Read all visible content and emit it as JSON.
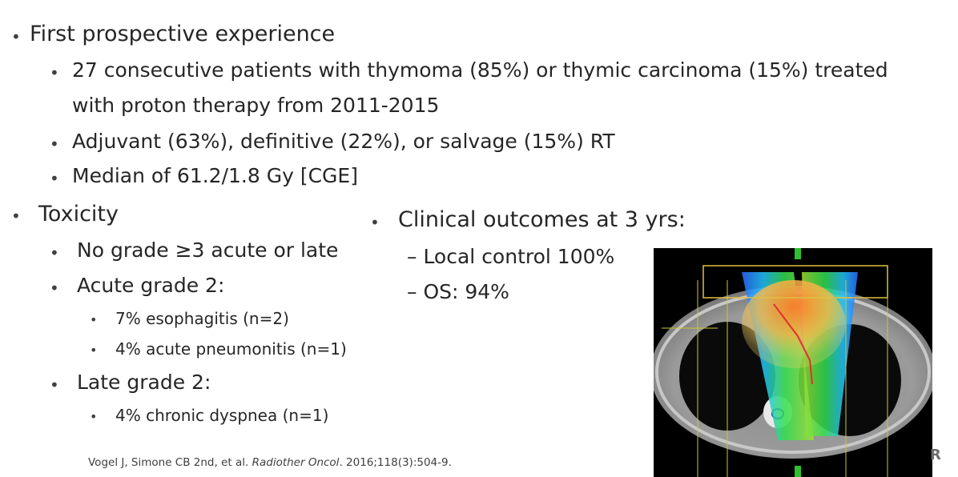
{
  "bullet_char": "•",
  "section1": {
    "heading": "First prospective experience",
    "items": [
      "27 consecutive patients with thymoma (85%) or thymic carcinoma (15%) treated",
      "with proton therapy from 2011-2015",
      "Adjuvant (63%), definitive (22%), or salvage (15%) RT",
      "Median of 61.2/1.8 Gy [CGE]"
    ]
  },
  "toxicity": {
    "heading": "Toxicity",
    "item1": "No grade ≥3 acute or late",
    "item2": "Acute grade 2:",
    "item2_sub": [
      "7% esophagitis (n=2)",
      "4% acute pneumonitis (n=1)"
    ],
    "item3": "Late grade 2:",
    "item3_sub": [
      "4% chronic dyspnea (n=1)"
    ]
  },
  "outcomes": {
    "heading": "Clinical outcomes at 3 yrs:",
    "items": [
      "– Local control 100%",
      "– OS: 94%"
    ]
  },
  "reference": {
    "authors": "Vogel J, Simone CB 2nd, et al. ",
    "journal": "Radiother Oncol",
    "rest": ". 2016;118(3):504-9."
  },
  "corner_text": "R",
  "image": {
    "semantic": "ct-dose-distribution-image"
  }
}
